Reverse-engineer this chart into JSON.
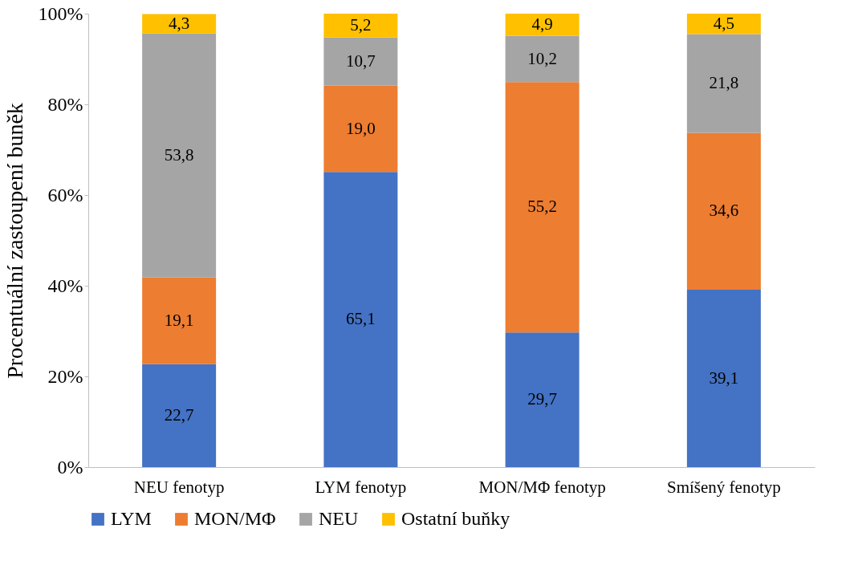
{
  "chart_data": {
    "type": "bar",
    "stacked": true,
    "ylabel": "Procentuální zastoupení buněk",
    "categories": [
      "NEU fenotyp",
      "LYM fenotyp",
      "MON/MΦ fenotyp",
      "Smíšený fenotyp"
    ],
    "series": [
      {
        "name": "LYM",
        "color": "#4472c4",
        "values": [
          22.7,
          65.1,
          29.7,
          39.1
        ],
        "value_labels": [
          "22,7",
          "65,1",
          "29,7",
          "39,1"
        ]
      },
      {
        "name": "MON/MΦ",
        "color": "#ed7d31",
        "values": [
          19.1,
          19.0,
          55.2,
          34.6
        ],
        "value_labels": [
          "19,1",
          "19,0",
          "55,2",
          "34,6"
        ]
      },
      {
        "name": "NEU",
        "color": "#a5a5a5",
        "values": [
          53.8,
          10.7,
          10.2,
          21.8
        ],
        "value_labels": [
          "53,8",
          "10,7",
          "10,2",
          "21,8"
        ]
      },
      {
        "name": "Ostatní buňky",
        "color": "#ffc000",
        "values": [
          4.3,
          5.2,
          4.9,
          4.5
        ],
        "value_labels": [
          "4,3",
          "5,2",
          "4,9",
          "4,5"
        ]
      }
    ],
    "ylim": [
      0,
      100
    ],
    "yticks": [
      {
        "value": 0,
        "label": "0%"
      },
      {
        "value": 20,
        "label": "20%"
      },
      {
        "value": 40,
        "label": "40%"
      },
      {
        "value": 60,
        "label": "60%"
      },
      {
        "value": 80,
        "label": "80%"
      },
      {
        "value": 100,
        "label": "100%"
      }
    ],
    "grid": false,
    "legend": "bottom"
  }
}
